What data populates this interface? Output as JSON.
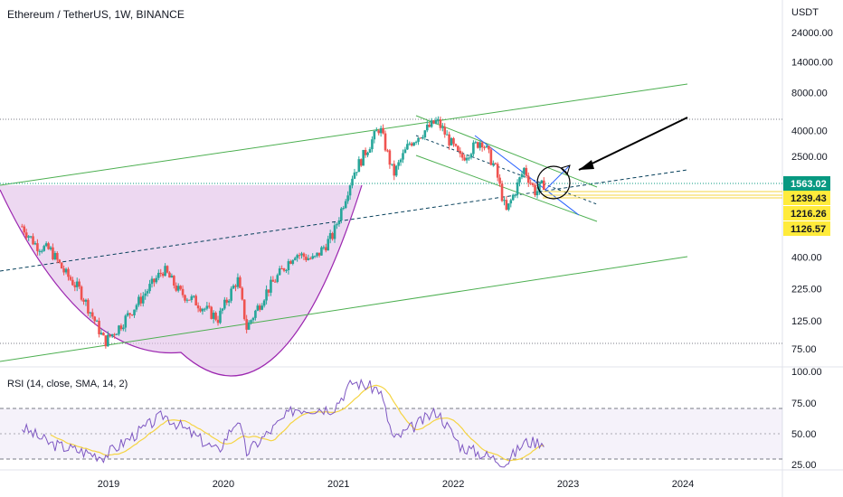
{
  "header": {
    "title": "Ethereum / TetherUS, 1W, BINANCE",
    "currency": "USDT"
  },
  "rsi": {
    "title": "RSI (14, close, SMA, 14, 2)",
    "ticks": [
      "100.00",
      "75.00",
      "50.00",
      "25.00"
    ],
    "upper_band": 70,
    "lower_band": 30,
    "color": "#7e57c2",
    "ma_color": "#f5d442"
  },
  "price_axis_labels": [
    "24000.00",
    "14000.00",
    "8000.00",
    "4000.00",
    "2500.00",
    "400.00",
    "225.00",
    "125.00",
    "75.00"
  ],
  "price_tags": [
    {
      "text": "1563.02",
      "bg": "#089981",
      "fg": "#ffffff"
    },
    {
      "text": "1239.43",
      "bg": "#ffeb3b",
      "fg": "#131722"
    },
    {
      "text": "1216.26",
      "bg": "#ffeb3b",
      "fg": "#131722"
    },
    {
      "text": "1126.57",
      "bg": "#ffeb3b",
      "fg": "#131722"
    }
  ],
  "time_axis_labels": [
    "2019",
    "2020",
    "2021",
    "2022",
    "2023",
    "2024"
  ],
  "colors": {
    "up": "#26a69a",
    "down": "#ef5350",
    "trendline": "#4caf50",
    "cup_fill": "#e1bee7",
    "cup_line": "#9c27b0",
    "arrow": "#000000"
  },
  "chart_data": {
    "type": "candlestick",
    "scale": "log",
    "symbol": "ETH/USDT",
    "interval": "1W",
    "x_range": [
      "2018-04",
      "2024-10"
    ],
    "y_range": [
      60,
      30000
    ],
    "close_path": [
      {
        "date": "2018-04-01",
        "price": 700
      },
      {
        "date": "2018-05-15",
        "price": 500
      },
      {
        "date": "2018-07-01",
        "price": 450
      },
      {
        "date": "2018-08-15",
        "price": 300
      },
      {
        "date": "2018-10-01",
        "price": 220
      },
      {
        "date": "2018-11-15",
        "price": 130
      },
      {
        "date": "2018-12-20",
        "price": 85
      },
      {
        "date": "2019-02-01",
        "price": 110
      },
      {
        "date": "2019-04-01",
        "price": 170
      },
      {
        "date": "2019-06-25",
        "price": 320
      },
      {
        "date": "2019-08-15",
        "price": 210
      },
      {
        "date": "2019-10-01",
        "price": 180
      },
      {
        "date": "2019-12-15",
        "price": 130
      },
      {
        "date": "2020-02-15",
        "price": 270
      },
      {
        "date": "2020-03-15",
        "price": 110
      },
      {
        "date": "2020-05-15",
        "price": 210
      },
      {
        "date": "2020-08-15",
        "price": 430
      },
      {
        "date": "2020-10-15",
        "price": 380
      },
      {
        "date": "2020-12-15",
        "price": 600
      },
      {
        "date": "2021-02-15",
        "price": 1800
      },
      {
        "date": "2021-05-12",
        "price": 4300
      },
      {
        "date": "2021-06-25",
        "price": 1800
      },
      {
        "date": "2021-08-15",
        "price": 3200
      },
      {
        "date": "2021-11-10",
        "price": 4800
      },
      {
        "date": "2022-01-25",
        "price": 2400
      },
      {
        "date": "2022-04-01",
        "price": 3400
      },
      {
        "date": "2022-05-15",
        "price": 2000
      },
      {
        "date": "2022-06-18",
        "price": 900
      },
      {
        "date": "2022-08-14",
        "price": 2000
      },
      {
        "date": "2022-09-20",
        "price": 1300
      },
      {
        "date": "2022-10-20",
        "price": 1563
      }
    ],
    "rsi_path": [
      {
        "date": "2018-04-01",
        "rsi": 55
      },
      {
        "date": "2018-07-01",
        "rsi": 42
      },
      {
        "date": "2018-12-15",
        "rsi": 32
      },
      {
        "date": "2019-06-25",
        "rsi": 65
      },
      {
        "date": "2019-12-15",
        "rsi": 36
      },
      {
        "date": "2020-02-15",
        "rsi": 62
      },
      {
        "date": "2020-03-15",
        "rsi": 35
      },
      {
        "date": "2020-08-15",
        "rsi": 70
      },
      {
        "date": "2020-12-15",
        "rsi": 70
      },
      {
        "date": "2021-02-15",
        "rsi": 91
      },
      {
        "date": "2021-05-12",
        "rsi": 85
      },
      {
        "date": "2021-06-25",
        "rsi": 45
      },
      {
        "date": "2021-11-10",
        "rsi": 68
      },
      {
        "date": "2022-01-25",
        "rsi": 40
      },
      {
        "date": "2022-06-18",
        "rsi": 27
      },
      {
        "date": "2022-08-14",
        "rsi": 43
      },
      {
        "date": "2022-10-20",
        "rsi": 44
      }
    ]
  }
}
